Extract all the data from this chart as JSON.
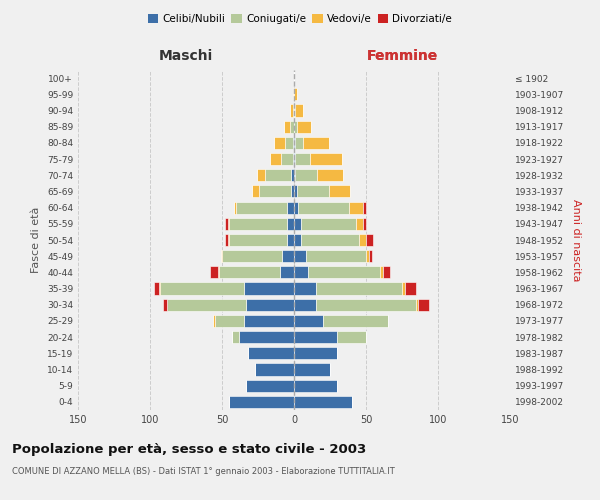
{
  "age_groups": [
    "100+",
    "95-99",
    "90-94",
    "85-89",
    "80-84",
    "75-79",
    "70-74",
    "65-69",
    "60-64",
    "55-59",
    "50-54",
    "45-49",
    "40-44",
    "35-39",
    "30-34",
    "25-29",
    "20-24",
    "15-19",
    "10-14",
    "5-9",
    "0-4"
  ],
  "birth_years": [
    "≤ 1902",
    "1903-1907",
    "1908-1912",
    "1913-1917",
    "1918-1922",
    "1923-1927",
    "1928-1932",
    "1933-1937",
    "1938-1942",
    "1943-1947",
    "1948-1952",
    "1953-1957",
    "1958-1962",
    "1963-1967",
    "1968-1972",
    "1973-1977",
    "1978-1982",
    "1983-1987",
    "1988-1992",
    "1993-1997",
    "1998-2002"
  ],
  "males": {
    "celibi": [
      0,
      0,
      0,
      0,
      1,
      1,
      2,
      2,
      5,
      5,
      5,
      8,
      10,
      35,
      33,
      35,
      38,
      32,
      27,
      33,
      45
    ],
    "coniugati": [
      0,
      0,
      1,
      3,
      5,
      8,
      18,
      22,
      35,
      40,
      40,
      42,
      42,
      58,
      55,
      20,
      5,
      0,
      0,
      0,
      0
    ],
    "vedovi": [
      0,
      1,
      2,
      4,
      8,
      8,
      6,
      5,
      2,
      1,
      1,
      1,
      1,
      1,
      0,
      1,
      0,
      0,
      0,
      0,
      0
    ],
    "divorziati": [
      0,
      0,
      0,
      0,
      0,
      0,
      0,
      0,
      0,
      2,
      2,
      0,
      5,
      3,
      3,
      0,
      0,
      0,
      0,
      0,
      0
    ]
  },
  "females": {
    "nubili": [
      0,
      0,
      0,
      0,
      1,
      1,
      1,
      2,
      3,
      5,
      5,
      8,
      10,
      15,
      15,
      20,
      30,
      30,
      25,
      30,
      40
    ],
    "coniugate": [
      0,
      0,
      1,
      2,
      5,
      10,
      15,
      22,
      35,
      38,
      40,
      42,
      50,
      60,
      70,
      45,
      20,
      0,
      0,
      0,
      0
    ],
    "vedove": [
      0,
      2,
      5,
      10,
      18,
      22,
      18,
      15,
      10,
      5,
      5,
      2,
      2,
      2,
      1,
      0,
      0,
      0,
      0,
      0,
      0
    ],
    "divorziate": [
      0,
      0,
      0,
      0,
      0,
      0,
      0,
      0,
      2,
      2,
      5,
      2,
      5,
      8,
      8,
      0,
      0,
      0,
      0,
      0,
      0
    ]
  },
  "colors": {
    "celibi": "#3d6fa8",
    "coniugati": "#b5c99a",
    "vedovi": "#f5b942",
    "divorziati": "#cc2222"
  },
  "legend_labels": [
    "Celibi/Nubili",
    "Coniugati/e",
    "Vedovi/e",
    "Divorziati/e"
  ],
  "title": "Popolazione per età, sesso e stato civile - 2003",
  "subtitle": "COMUNE DI AZZANO MELLA (BS) - Dati ISTAT 1° gennaio 2003 - Elaborazione TUTTITALIA.IT",
  "maschi_label": "Maschi",
  "femmine_label": "Femmine",
  "ylabel_left": "Fasce di età",
  "ylabel_right": "Anni di nascita",
  "xlim": 150,
  "background_color": "#f0f0f0"
}
